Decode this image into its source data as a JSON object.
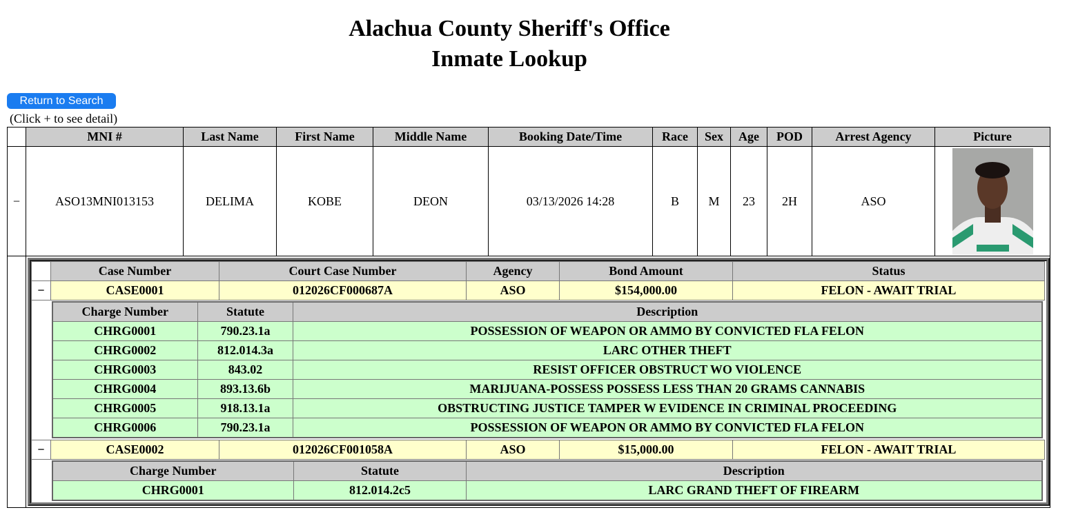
{
  "title_line1": "Alachua County Sheriff's Office",
  "title_line2": "Inmate Lookup",
  "return_button": "Return to Search",
  "hint": "(Click + to see detail)",
  "inmate_headers": [
    "MNI #",
    "Last Name",
    "First Name",
    "Middle Name",
    "Booking Date/Time",
    "Race",
    "Sex",
    "Age",
    "POD",
    "Arrest Agency",
    "Picture"
  ],
  "inmate": {
    "toggle": "−",
    "mni": "ASO13MNI013153",
    "last": "DELIMA",
    "first": "KOBE",
    "middle": "DEON",
    "booking": "03/13/2026 14:28",
    "race": "B",
    "sex": "M",
    "age": "23",
    "pod": "2H",
    "agency": "ASO"
  },
  "case_headers": [
    "Case Number",
    "Court Case Number",
    "Agency",
    "Bond Amount",
    "Status"
  ],
  "charge_headers": [
    "Charge Number",
    "Statute",
    "Description"
  ],
  "cases": [
    {
      "toggle": "−",
      "case": "CASE0001",
      "court": "012026CF000687A",
      "agency": "ASO",
      "bond": "$154,000.00",
      "status": "FELON - AWAIT TRIAL",
      "charges": [
        [
          "CHRG0001",
          "790.23.1a",
          "POSSESSION OF WEAPON OR AMMO BY CONVICTED FLA FELON"
        ],
        [
          "CHRG0002",
          "812.014.3a",
          "LARC OTHER THEFT"
        ],
        [
          "CHRG0003",
          "843.02",
          "RESIST OFFICER OBSTRUCT WO VIOLENCE"
        ],
        [
          "CHRG0004",
          "893.13.6b",
          "MARIJUANA-POSSESS POSSESS LESS THAN 20 GRAMS CANNABIS"
        ],
        [
          "CHRG0005",
          "918.13.1a",
          "OBSTRUCTING JUSTICE TAMPER W EVIDENCE IN CRIMINAL PROCEEDING"
        ],
        [
          "CHRG0006",
          "790.23.1a",
          "POSSESSION OF WEAPON OR AMMO BY CONVICTED FLA FELON"
        ]
      ]
    },
    {
      "toggle": "−",
      "case": "CASE0002",
      "court": "012026CF001058A",
      "agency": "ASO",
      "bond": "$15,000.00",
      "status": "FELON - AWAIT TRIAL",
      "charges": [
        [
          "CHRG0001",
          "812.014.2c5",
          "LARC GRAND THEFT OF FIREARM"
        ]
      ]
    }
  ]
}
